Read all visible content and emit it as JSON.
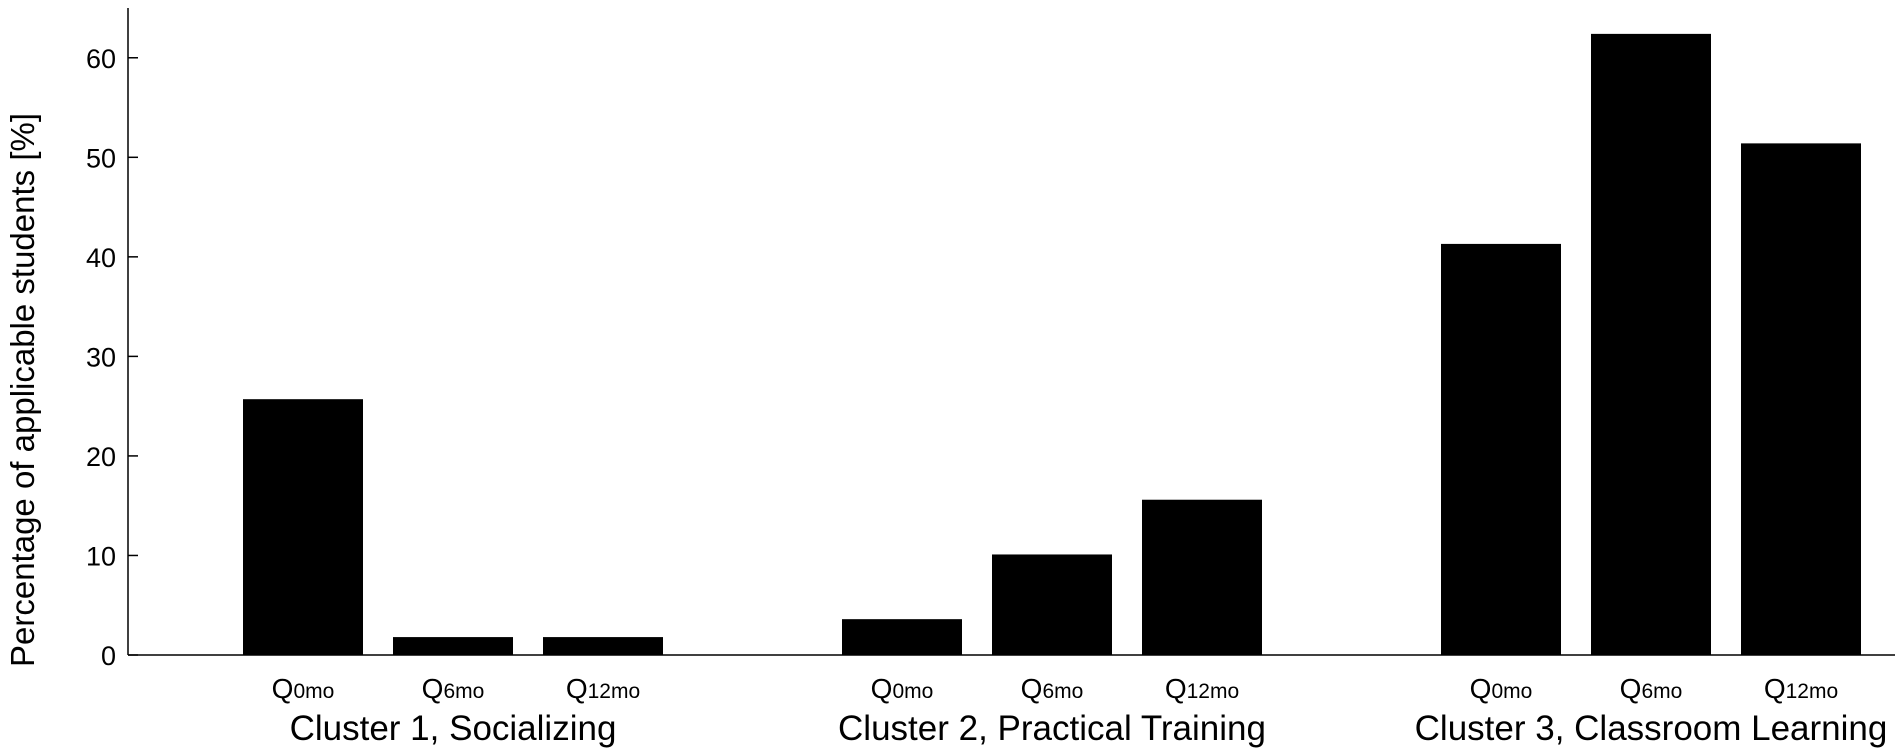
{
  "chart_data": {
    "type": "bar",
    "ylabel": "Percentage of applicable students [%]",
    "ylim": [
      0,
      65
    ],
    "yticks": [
      0,
      10,
      20,
      30,
      40,
      50,
      60
    ],
    "grid": false,
    "bar_color": "#000000",
    "groups": [
      {
        "name": "Cluster 1, Socializing",
        "categories": [
          {
            "main": "Q",
            "sub": "0mo"
          },
          {
            "main": "Q",
            "sub": "6mo"
          },
          {
            "main": "Q",
            "sub": "12mo"
          }
        ],
        "values": [
          25.7,
          1.8,
          1.8
        ]
      },
      {
        "name": "Cluster 2, Practical Training",
        "categories": [
          {
            "main": "Q",
            "sub": "0mo"
          },
          {
            "main": "Q",
            "sub": "6mo"
          },
          {
            "main": "Q",
            "sub": "12mo"
          }
        ],
        "values": [
          3.6,
          10.1,
          15.6
        ]
      },
      {
        "name": "Cluster 3, Classroom Learning",
        "categories": [
          {
            "main": "Q",
            "sub": "0mo"
          },
          {
            "main": "Q",
            "sub": "6mo"
          },
          {
            "main": "Q",
            "sub": "12mo"
          }
        ],
        "values": [
          41.3,
          62.4,
          51.4
        ]
      }
    ]
  }
}
